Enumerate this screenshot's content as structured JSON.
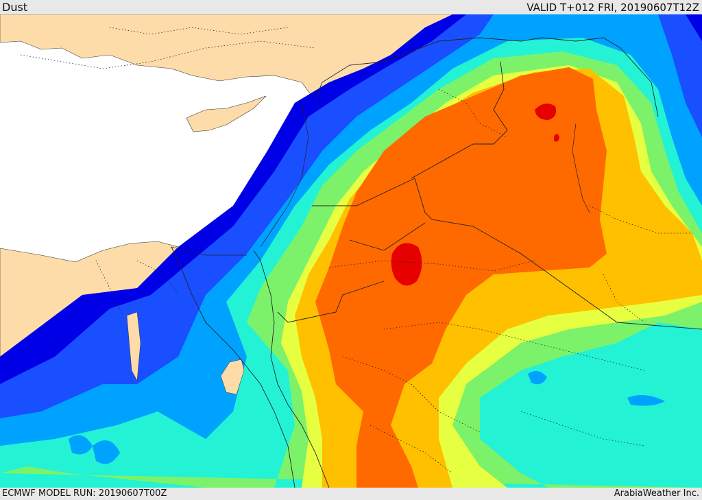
{
  "header": {
    "title": "Dust",
    "valid": "VALID T+012 FRI, 20190607T12Z"
  },
  "footer": {
    "model_run": "ECMWF MODEL RUN: 20190607T00Z",
    "credit": "ArabiaWeather Inc."
  },
  "colors": {
    "sea": "#ffffff",
    "land": "#fddcaa",
    "level1": "#0000e6",
    "level2": "#1a4fff",
    "level3": "#00a2ff",
    "level4": "#23f2d5",
    "level5": "#7cf26a",
    "level6": "#e6ff40",
    "level7": "#ffc000",
    "level8": "#ff6a00",
    "level9": "#e60000"
  }
}
